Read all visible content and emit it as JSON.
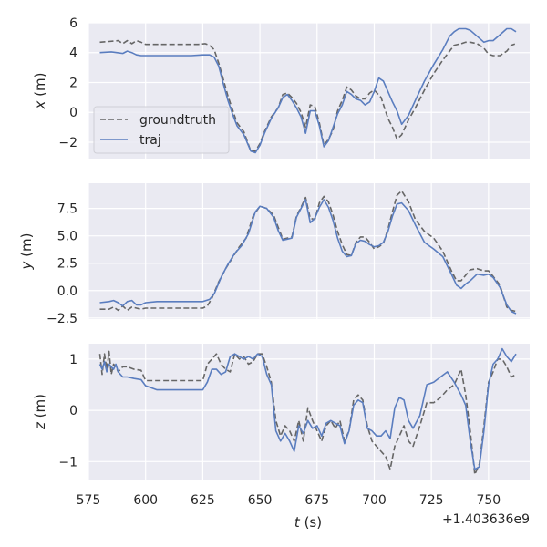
{
  "chart_data": [
    {
      "type": "line",
      "ylabel_var": "x",
      "ylabel_unit": " (m)",
      "ylim": [
        -3.1,
        6.0
      ],
      "yticks": [
        -2,
        0,
        2,
        4,
        6
      ],
      "legend": {
        "placement": "center-left",
        "entries": [
          "groundtruth",
          "traj"
        ]
      },
      "series": [
        {
          "name": "groundtruth",
          "style": "dashed",
          "color": "#666666",
          "x": [
            580,
            584,
            588,
            590,
            592,
            594,
            596,
            598,
            600,
            605,
            610,
            615,
            620,
            623,
            626,
            628,
            630,
            632,
            634,
            636,
            638,
            640,
            643,
            646,
            648,
            650,
            652,
            655,
            658,
            660,
            662,
            664,
            666,
            668,
            670,
            672,
            674,
            676,
            678,
            680,
            682,
            684,
            686,
            688,
            690,
            692,
            694,
            696,
            698,
            700,
            703,
            706,
            708,
            710,
            712,
            715,
            718,
            722,
            726,
            730,
            735,
            738,
            740,
            742,
            745,
            748,
            750,
            752,
            755,
            758,
            760,
            762
          ],
          "y": [
            4.7,
            4.75,
            4.8,
            4.6,
            4.8,
            4.6,
            4.8,
            4.7,
            4.55,
            4.55,
            4.55,
            4.55,
            4.55,
            4.55,
            4.6,
            4.5,
            4.2,
            3.3,
            2.2,
            1.1,
            0.2,
            -0.7,
            -1.3,
            -2.6,
            -2.6,
            -2.1,
            -1.3,
            -0.3,
            0.3,
            1.2,
            1.3,
            1.0,
            0.6,
            0.0,
            -1.0,
            0.5,
            0.4,
            -0.7,
            -2.2,
            -1.8,
            -1.2,
            0.1,
            0.8,
            1.7,
            1.5,
            1.1,
            0.9,
            0.9,
            1.3,
            1.5,
            1.0,
            -0.4,
            -1.0,
            -1.8,
            -1.5,
            -0.5,
            0.3,
            1.5,
            2.6,
            3.5,
            4.5,
            4.6,
            4.7,
            4.7,
            4.6,
            4.3,
            3.9,
            3.8,
            3.8,
            4.1,
            4.5,
            4.6
          ]
        },
        {
          "name": "traj",
          "style": "solid",
          "color": "#5a7dbf",
          "x": [
            580,
            585,
            590,
            592,
            594,
            596,
            598,
            600,
            605,
            610,
            615,
            620,
            625,
            628,
            630,
            632,
            634,
            636,
            638,
            640,
            643,
            646,
            648,
            650,
            652,
            655,
            658,
            660,
            662,
            664,
            666,
            668,
            670,
            672,
            674,
            676,
            678,
            680,
            682,
            684,
            686,
            688,
            690,
            692,
            694,
            696,
            698,
            700,
            702,
            704,
            706,
            708,
            710,
            712,
            715,
            718,
            722,
            726,
            730,
            733,
            735,
            737,
            740,
            742,
            745,
            748,
            750,
            752,
            755,
            758,
            760,
            762
          ],
          "y": [
            4.0,
            4.05,
            3.95,
            4.1,
            4.0,
            3.85,
            3.8,
            3.8,
            3.8,
            3.8,
            3.8,
            3.8,
            3.85,
            3.85,
            3.7,
            3.1,
            1.9,
            0.8,
            -0.1,
            -0.9,
            -1.5,
            -2.6,
            -2.7,
            -2.2,
            -1.4,
            -0.4,
            0.3,
            1.0,
            1.2,
            0.8,
            0.3,
            -0.3,
            -1.4,
            0.1,
            0.1,
            -0.9,
            -2.3,
            -1.9,
            -1.0,
            -0.1,
            0.5,
            1.4,
            1.2,
            0.9,
            0.8,
            0.5,
            0.7,
            1.4,
            2.3,
            2.1,
            1.4,
            0.7,
            0.1,
            -0.8,
            -0.2,
            0.8,
            2.1,
            3.2,
            4.2,
            5.1,
            5.4,
            5.6,
            5.6,
            5.5,
            5.1,
            4.7,
            4.8,
            4.8,
            5.2,
            5.6,
            5.6,
            5.4
          ]
        }
      ]
    },
    {
      "type": "line",
      "ylabel_var": "y",
      "ylabel_unit": " (m)",
      "ylim": [
        -2.6,
        9.8
      ],
      "yticks": [
        -2.5,
        0.0,
        2.5,
        5.0,
        7.5
      ],
      "yticklabels": [
        "−2.5",
        "0.0",
        "2.5",
        "5.0",
        "7.5"
      ],
      "series": [
        {
          "name": "groundtruth",
          "style": "dashed",
          "color": "#666666",
          "x": [
            580,
            584,
            586,
            588,
            590,
            592,
            594,
            596,
            598,
            600,
            605,
            610,
            615,
            620,
            625,
            627,
            629,
            632,
            635,
            638,
            641,
            644,
            647,
            650,
            653,
            656,
            658,
            660,
            662,
            664,
            666,
            668,
            670,
            672,
            674,
            676,
            678,
            680,
            682,
            684,
            686,
            688,
            690,
            692,
            694,
            696,
            698,
            700,
            702,
            704,
            706,
            708,
            710,
            712,
            715,
            718,
            722,
            726,
            730,
            734,
            736,
            738,
            740,
            742,
            745,
            748,
            750,
            752,
            755,
            758,
            760,
            762
          ],
          "y": [
            -1.7,
            -1.7,
            -1.5,
            -1.8,
            -1.4,
            -1.8,
            -1.5,
            -1.6,
            -1.7,
            -1.6,
            -1.6,
            -1.6,
            -1.6,
            -1.6,
            -1.6,
            -1.4,
            -0.7,
            0.8,
            2.0,
            3.0,
            4.0,
            4.8,
            6.8,
            7.7,
            7.5,
            6.9,
            5.8,
            4.7,
            4.8,
            4.9,
            6.8,
            7.6,
            8.5,
            6.6,
            6.5,
            8.0,
            8.6,
            8.1,
            6.9,
            5.4,
            4.2,
            3.3,
            3.2,
            4.4,
            4.9,
            4.9,
            4.4,
            3.8,
            4.0,
            4.3,
            5.6,
            7.2,
            8.7,
            9.1,
            8.1,
            6.5,
            5.4,
            4.8,
            3.6,
            1.7,
            0.9,
            0.9,
            1.4,
            1.9,
            2.0,
            1.8,
            1.8,
            1.3,
            0.5,
            -1.5,
            -1.8,
            -1.9
          ]
        },
        {
          "name": "traj",
          "style": "solid",
          "color": "#5a7dbf",
          "x": [
            580,
            584,
            586,
            588,
            590,
            592,
            594,
            596,
            598,
            600,
            605,
            610,
            615,
            620,
            625,
            628,
            630,
            633,
            636,
            639,
            642,
            645,
            648,
            650,
            653,
            656,
            658,
            660,
            662,
            664,
            666,
            668,
            670,
            672,
            674,
            676,
            678,
            680,
            682,
            684,
            686,
            688,
            690,
            692,
            694,
            696,
            698,
            700,
            702,
            704,
            706,
            708,
            710,
            712,
            715,
            718,
            722,
            726,
            730,
            734,
            736,
            738,
            740,
            742,
            745,
            748,
            750,
            752,
            755,
            758,
            760,
            762
          ],
          "y": [
            -1.1,
            -1.0,
            -0.9,
            -1.1,
            -1.4,
            -1.0,
            -0.9,
            -1.3,
            -1.3,
            -1.1,
            -1.0,
            -1.0,
            -1.0,
            -1.0,
            -1.0,
            -0.8,
            -0.3,
            1.2,
            2.4,
            3.4,
            4.1,
            5.2,
            7.2,
            7.7,
            7.5,
            6.7,
            5.5,
            4.6,
            4.7,
            4.8,
            6.7,
            7.5,
            8.3,
            6.2,
            6.6,
            7.6,
            8.3,
            7.6,
            6.4,
            4.8,
            3.6,
            3.1,
            3.2,
            4.3,
            4.6,
            4.5,
            4.2,
            4.0,
            4.1,
            4.4,
            5.4,
            6.8,
            7.9,
            8.0,
            7.3,
            6.0,
            4.4,
            3.8,
            3.1,
            1.4,
            0.5,
            0.2,
            0.6,
            0.9,
            1.5,
            1.4,
            1.5,
            1.2,
            0.3,
            -1.3,
            -1.9,
            -2.1
          ]
        }
      ]
    },
    {
      "type": "line",
      "ylabel_var": "z",
      "ylabel_unit": " (m)",
      "ylim": [
        -1.35,
        1.3
      ],
      "yticks": [
        -1,
        0,
        1
      ],
      "yticklabels": [
        "−1",
        "0",
        "1"
      ],
      "series": [
        {
          "name": "groundtruth",
          "style": "dashed",
          "color": "#666666",
          "x": [
            580,
            581,
            582,
            583,
            584,
            585,
            586,
            587,
            588,
            590,
            592,
            595,
            598,
            600,
            605,
            610,
            615,
            620,
            625,
            627,
            629,
            631,
            633,
            635,
            637,
            639,
            641,
            643,
            645,
            647,
            649,
            651,
            653,
            655,
            657,
            659,
            661,
            663,
            665,
            667,
            669,
            671,
            673,
            675,
            677,
            679,
            681,
            683,
            685,
            687,
            689,
            691,
            693,
            695,
            697,
            699,
            701,
            703,
            705,
            707,
            709,
            711,
            713,
            715,
            717,
            720,
            723,
            726,
            729,
            732,
            735,
            738,
            740,
            742,
            744,
            746,
            748,
            750,
            752,
            754,
            756,
            758,
            760,
            762
          ],
          "y": [
            1.1,
            0.7,
            1.1,
            0.8,
            1.15,
            0.7,
            0.9,
            0.85,
            0.75,
            0.85,
            0.85,
            0.8,
            0.78,
            0.58,
            0.58,
            0.58,
            0.58,
            0.58,
            0.58,
            0.9,
            1.0,
            1.1,
            0.9,
            0.8,
            0.75,
            1.1,
            1.0,
            1.05,
            0.9,
            0.95,
            1.1,
            1.1,
            0.85,
            0.55,
            -0.2,
            -0.5,
            -0.3,
            -0.4,
            -0.6,
            -0.2,
            -0.6,
            0.05,
            -0.2,
            -0.4,
            -0.6,
            -0.3,
            -0.2,
            -0.35,
            -0.2,
            -0.6,
            -0.4,
            0.2,
            0.3,
            0.2,
            -0.3,
            -0.6,
            -0.7,
            -0.8,
            -0.9,
            -1.15,
            -0.7,
            -0.5,
            -0.3,
            -0.6,
            -0.7,
            -0.3,
            0.15,
            0.15,
            0.25,
            0.4,
            0.5,
            0.8,
            0.3,
            -0.4,
            -1.25,
            -1.05,
            -0.3,
            0.55,
            0.75,
            1.0,
            1.0,
            0.85,
            0.65,
            0.7
          ]
        },
        {
          "name": "traj",
          "style": "solid",
          "color": "#5a7dbf",
          "x": [
            580,
            581,
            582,
            583,
            584,
            585,
            586,
            587,
            588,
            590,
            592,
            595,
            598,
            600,
            605,
            610,
            615,
            620,
            625,
            627,
            629,
            631,
            633,
            635,
            637,
            639,
            641,
            643,
            645,
            647,
            649,
            651,
            653,
            655,
            657,
            659,
            661,
            663,
            665,
            667,
            669,
            671,
            673,
            675,
            677,
            679,
            681,
            683,
            685,
            687,
            689,
            691,
            693,
            695,
            697,
            699,
            701,
            703,
            705,
            707,
            709,
            711,
            713,
            715,
            717,
            720,
            723,
            726,
            729,
            732,
            735,
            738,
            740,
            742,
            744,
            746,
            748,
            750,
            752,
            754,
            756,
            758,
            760,
            762
          ],
          "y": [
            0.9,
            0.8,
            0.95,
            0.75,
            0.9,
            0.85,
            0.8,
            0.9,
            0.75,
            0.65,
            0.65,
            0.62,
            0.6,
            0.48,
            0.4,
            0.4,
            0.4,
            0.4,
            0.4,
            0.55,
            0.8,
            0.8,
            0.7,
            0.75,
            1.05,
            1.1,
            1.05,
            1.0,
            1.05,
            1.0,
            1.1,
            1.05,
            0.7,
            0.5,
            -0.4,
            -0.6,
            -0.45,
            -0.6,
            -0.8,
            -0.3,
            -0.45,
            -0.2,
            -0.35,
            -0.3,
            -0.5,
            -0.25,
            -0.2,
            -0.25,
            -0.3,
            -0.65,
            -0.4,
            0.1,
            0.2,
            0.15,
            -0.35,
            -0.4,
            -0.5,
            -0.5,
            -0.4,
            -0.55,
            0.05,
            0.25,
            0.2,
            -0.2,
            -0.35,
            -0.1,
            0.5,
            0.55,
            0.65,
            0.75,
            0.55,
            0.3,
            0.1,
            -0.6,
            -1.15,
            -1.1,
            -0.4,
            0.5,
            0.9,
            1.0,
            1.2,
            1.05,
            0.95,
            1.1
          ]
        }
      ]
    }
  ],
  "shared_x": {
    "xlim": [
      575,
      768
    ],
    "ticks": [
      575,
      600,
      625,
      650,
      675,
      700,
      725,
      750
    ],
    "label_var": "t",
    "label_unit": " (s)",
    "offset_text": "+1.403636e9"
  },
  "colors": {
    "panel_bg": "#eaeaf2",
    "grid": "#ffffff",
    "groundtruth": "#666666",
    "traj": "#5a7dbf",
    "text": "#262626"
  }
}
